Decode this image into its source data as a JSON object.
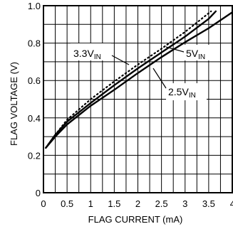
{
  "chart_data": {
    "type": "line",
    "xlabel": "FLAG CURRENT (mA)",
    "ylabel": "FLAG VOLTAGE (V)",
    "xlim": [
      0,
      4
    ],
    "ylim": [
      0,
      1.0
    ],
    "grid": true,
    "x_ticks": [
      "0",
      "0.5",
      "1",
      "1.5",
      "2",
      "2.5",
      "3",
      "3.5",
      "4"
    ],
    "y_ticks": [
      "0",
      "0.2",
      "0.4",
      "0.6",
      "0.8",
      "1.0"
    ],
    "series": [
      {
        "name": "3.3V",
        "name_sub": "IN",
        "style": "solid",
        "x": [
          0.05,
          0.25,
          0.5,
          1.0,
          1.5,
          2.0,
          2.5,
          3.0,
          3.5,
          3.65
        ],
        "y": [
          0.24,
          0.31,
          0.38,
          0.48,
          0.575,
          0.665,
          0.75,
          0.835,
          0.93,
          0.97
        ]
      },
      {
        "name": "5V",
        "name_sub": "IN",
        "style": "dotted",
        "x": [
          0.05,
          0.25,
          0.5,
          1.0,
          1.5,
          2.0,
          2.5,
          3.0,
          3.5,
          3.55
        ],
        "y": [
          0.24,
          0.31,
          0.39,
          0.5,
          0.595,
          0.685,
          0.77,
          0.86,
          0.96,
          0.97
        ]
      },
      {
        "name": "2.5V",
        "name_sub": "IN",
        "style": "solid",
        "x": [
          0.05,
          0.25,
          0.5,
          1.0,
          1.5,
          2.0,
          2.5,
          3.0,
          3.5,
          4.0
        ],
        "y": [
          0.24,
          0.3,
          0.365,
          0.465,
          0.55,
          0.64,
          0.725,
          0.805,
          0.88,
          0.965
        ]
      }
    ]
  }
}
